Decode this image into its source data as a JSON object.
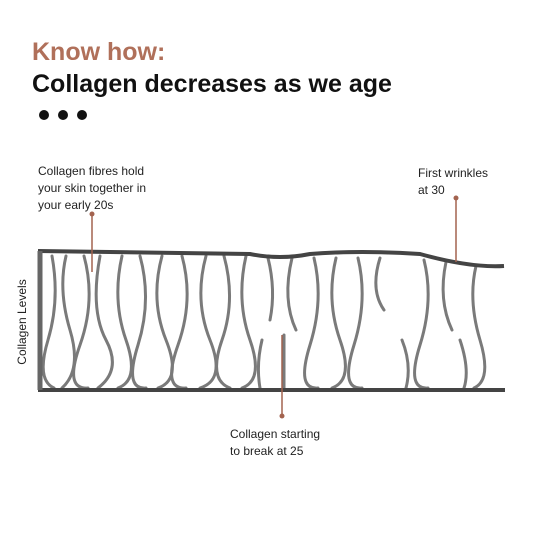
{
  "header": {
    "kicker": "Know how:",
    "title": "Collagen decreases as we age"
  },
  "diagram": {
    "axis_label": "Collagen Levels",
    "annotations": [
      {
        "lines": [
          "Collagen fibres hold",
          "your skin together in",
          "your early 20s"
        ]
      },
      {
        "lines": [
          "First wrinkles",
          "at 30"
        ]
      },
      {
        "lines": [
          "Collagen starting",
          "to break at 25"
        ]
      }
    ]
  }
}
